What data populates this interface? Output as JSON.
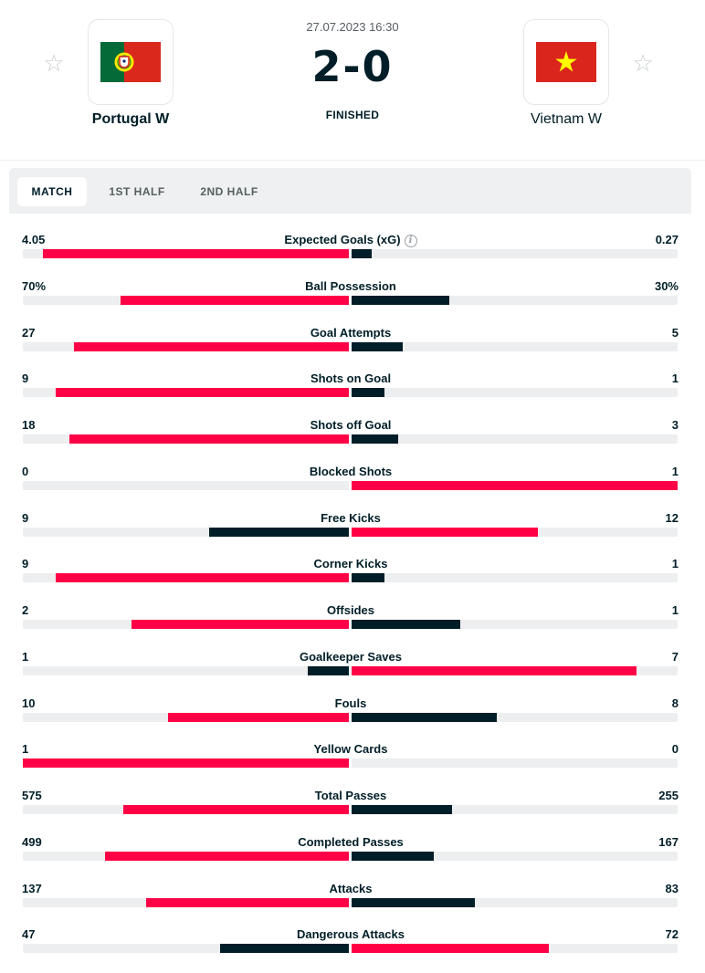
{
  "match": {
    "datetime": "27.07.2023 16:30",
    "score": "2-0",
    "status": "FINISHED",
    "home": {
      "name": "Portugal W",
      "flag": "portugal-flag"
    },
    "away": {
      "name": "Vietnam W",
      "flag": "vietnam-flag"
    }
  },
  "tabs": [
    {
      "label": "MATCH",
      "active": true
    },
    {
      "label": "1ST HALF",
      "active": false
    },
    {
      "label": "2ND HALF",
      "active": false
    }
  ],
  "colors": {
    "accent": "#ff0046",
    "dark": "#001e28",
    "track": "#eceeef"
  },
  "stats": [
    {
      "label": "Expected Goals (xG)",
      "home": "4.05",
      "away": "0.27",
      "home_num": 4.05,
      "away_num": 0.27,
      "info": true
    },
    {
      "label": "Ball Possession",
      "home": "70%",
      "away": "30%",
      "home_num": 70,
      "away_num": 30
    },
    {
      "label": "Goal Attempts",
      "home": "27",
      "away": "5",
      "home_num": 27,
      "away_num": 5
    },
    {
      "label": "Shots on Goal",
      "home": "9",
      "away": "1",
      "home_num": 9,
      "away_num": 1
    },
    {
      "label": "Shots off Goal",
      "home": "18",
      "away": "3",
      "home_num": 18,
      "away_num": 3
    },
    {
      "label": "Blocked Shots",
      "home": "0",
      "away": "1",
      "home_num": 0,
      "away_num": 1
    },
    {
      "label": "Free Kicks",
      "home": "9",
      "away": "12",
      "home_num": 9,
      "away_num": 12
    },
    {
      "label": "Corner Kicks",
      "home": "9",
      "away": "1",
      "home_num": 9,
      "away_num": 1
    },
    {
      "label": "Offsides",
      "home": "2",
      "away": "1",
      "home_num": 2,
      "away_num": 1
    },
    {
      "label": "Goalkeeper Saves",
      "home": "1",
      "away": "7",
      "home_num": 1,
      "away_num": 7
    },
    {
      "label": "Fouls",
      "home": "10",
      "away": "8",
      "home_num": 10,
      "away_num": 8
    },
    {
      "label": "Yellow Cards",
      "home": "1",
      "away": "0",
      "home_num": 1,
      "away_num": 0
    },
    {
      "label": "Total Passes",
      "home": "575",
      "away": "255",
      "home_num": 575,
      "away_num": 255
    },
    {
      "label": "Completed Passes",
      "home": "499",
      "away": "167",
      "home_num": 499,
      "away_num": 167
    },
    {
      "label": "Attacks",
      "home": "137",
      "away": "83",
      "home_num": 137,
      "away_num": 83
    },
    {
      "label": "Dangerous Attacks",
      "home": "47",
      "away": "72",
      "home_num": 47,
      "away_num": 72
    }
  ]
}
